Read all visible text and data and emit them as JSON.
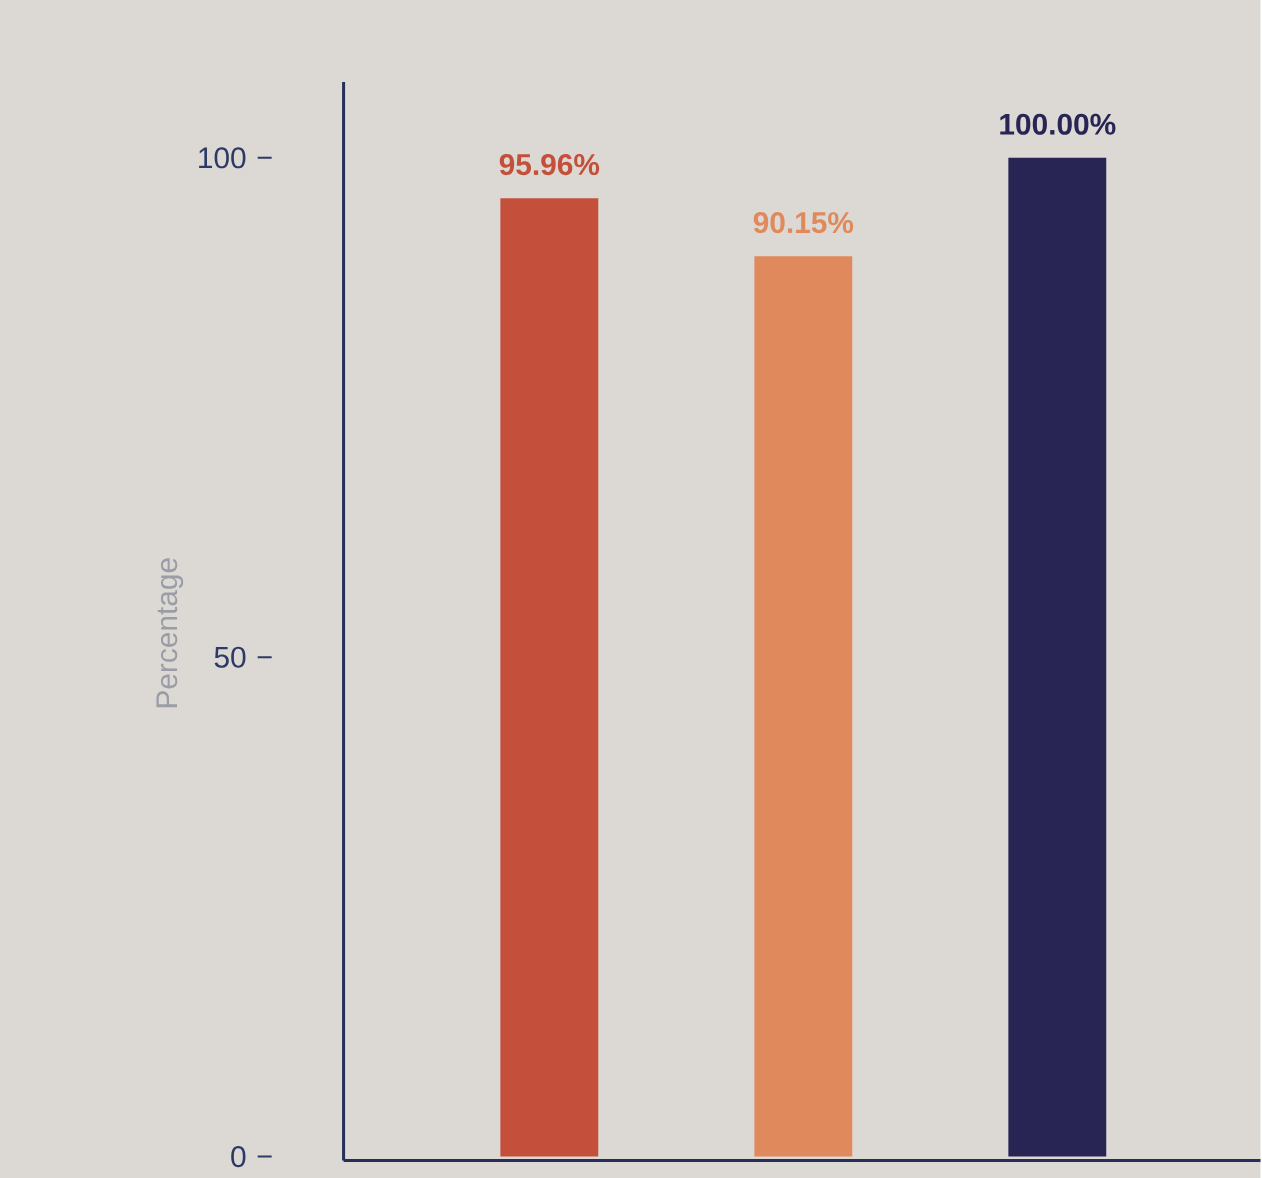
{
  "chart_data": {
    "type": "bar",
    "ylabel": "Percentage",
    "categories": [
      null,
      null,
      null
    ],
    "values": [
      95.96,
      90.15,
      100.0
    ],
    "colors": [
      "#c4503c",
      "#e0895c",
      "#282555"
    ],
    "value_labels": [
      "95.96%",
      "90.15%",
      "100.00%"
    ],
    "ylim": [
      -0.4,
      107.6
    ],
    "yticks": [
      0,
      50,
      100
    ]
  }
}
